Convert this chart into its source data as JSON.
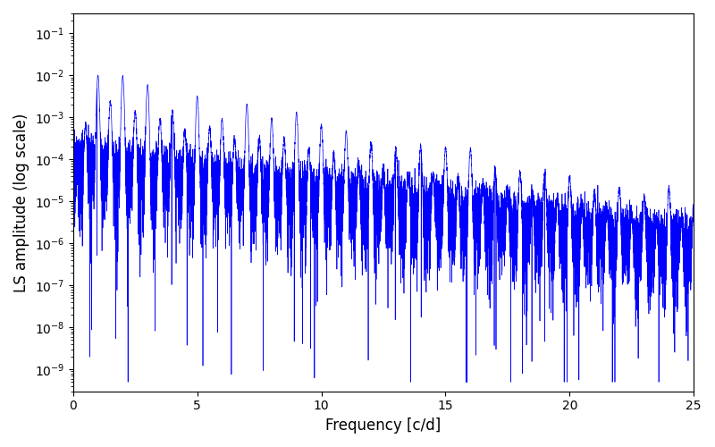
{
  "xlabel": "Frequency [c/d]",
  "ylabel": "LS amplitude (log scale)",
  "line_color": "#0000ff",
  "line_width": 0.5,
  "xlim": [
    0,
    25
  ],
  "ylim": [
    3e-10,
    0.3
  ],
  "figsize": [
    8.0,
    5.0
  ],
  "dpi": 100,
  "bg_color": "#ffffff",
  "xticks": [
    0,
    5,
    10,
    15,
    20,
    25
  ],
  "seed": 12345,
  "n_points": 12000,
  "freq_max": 25.0
}
